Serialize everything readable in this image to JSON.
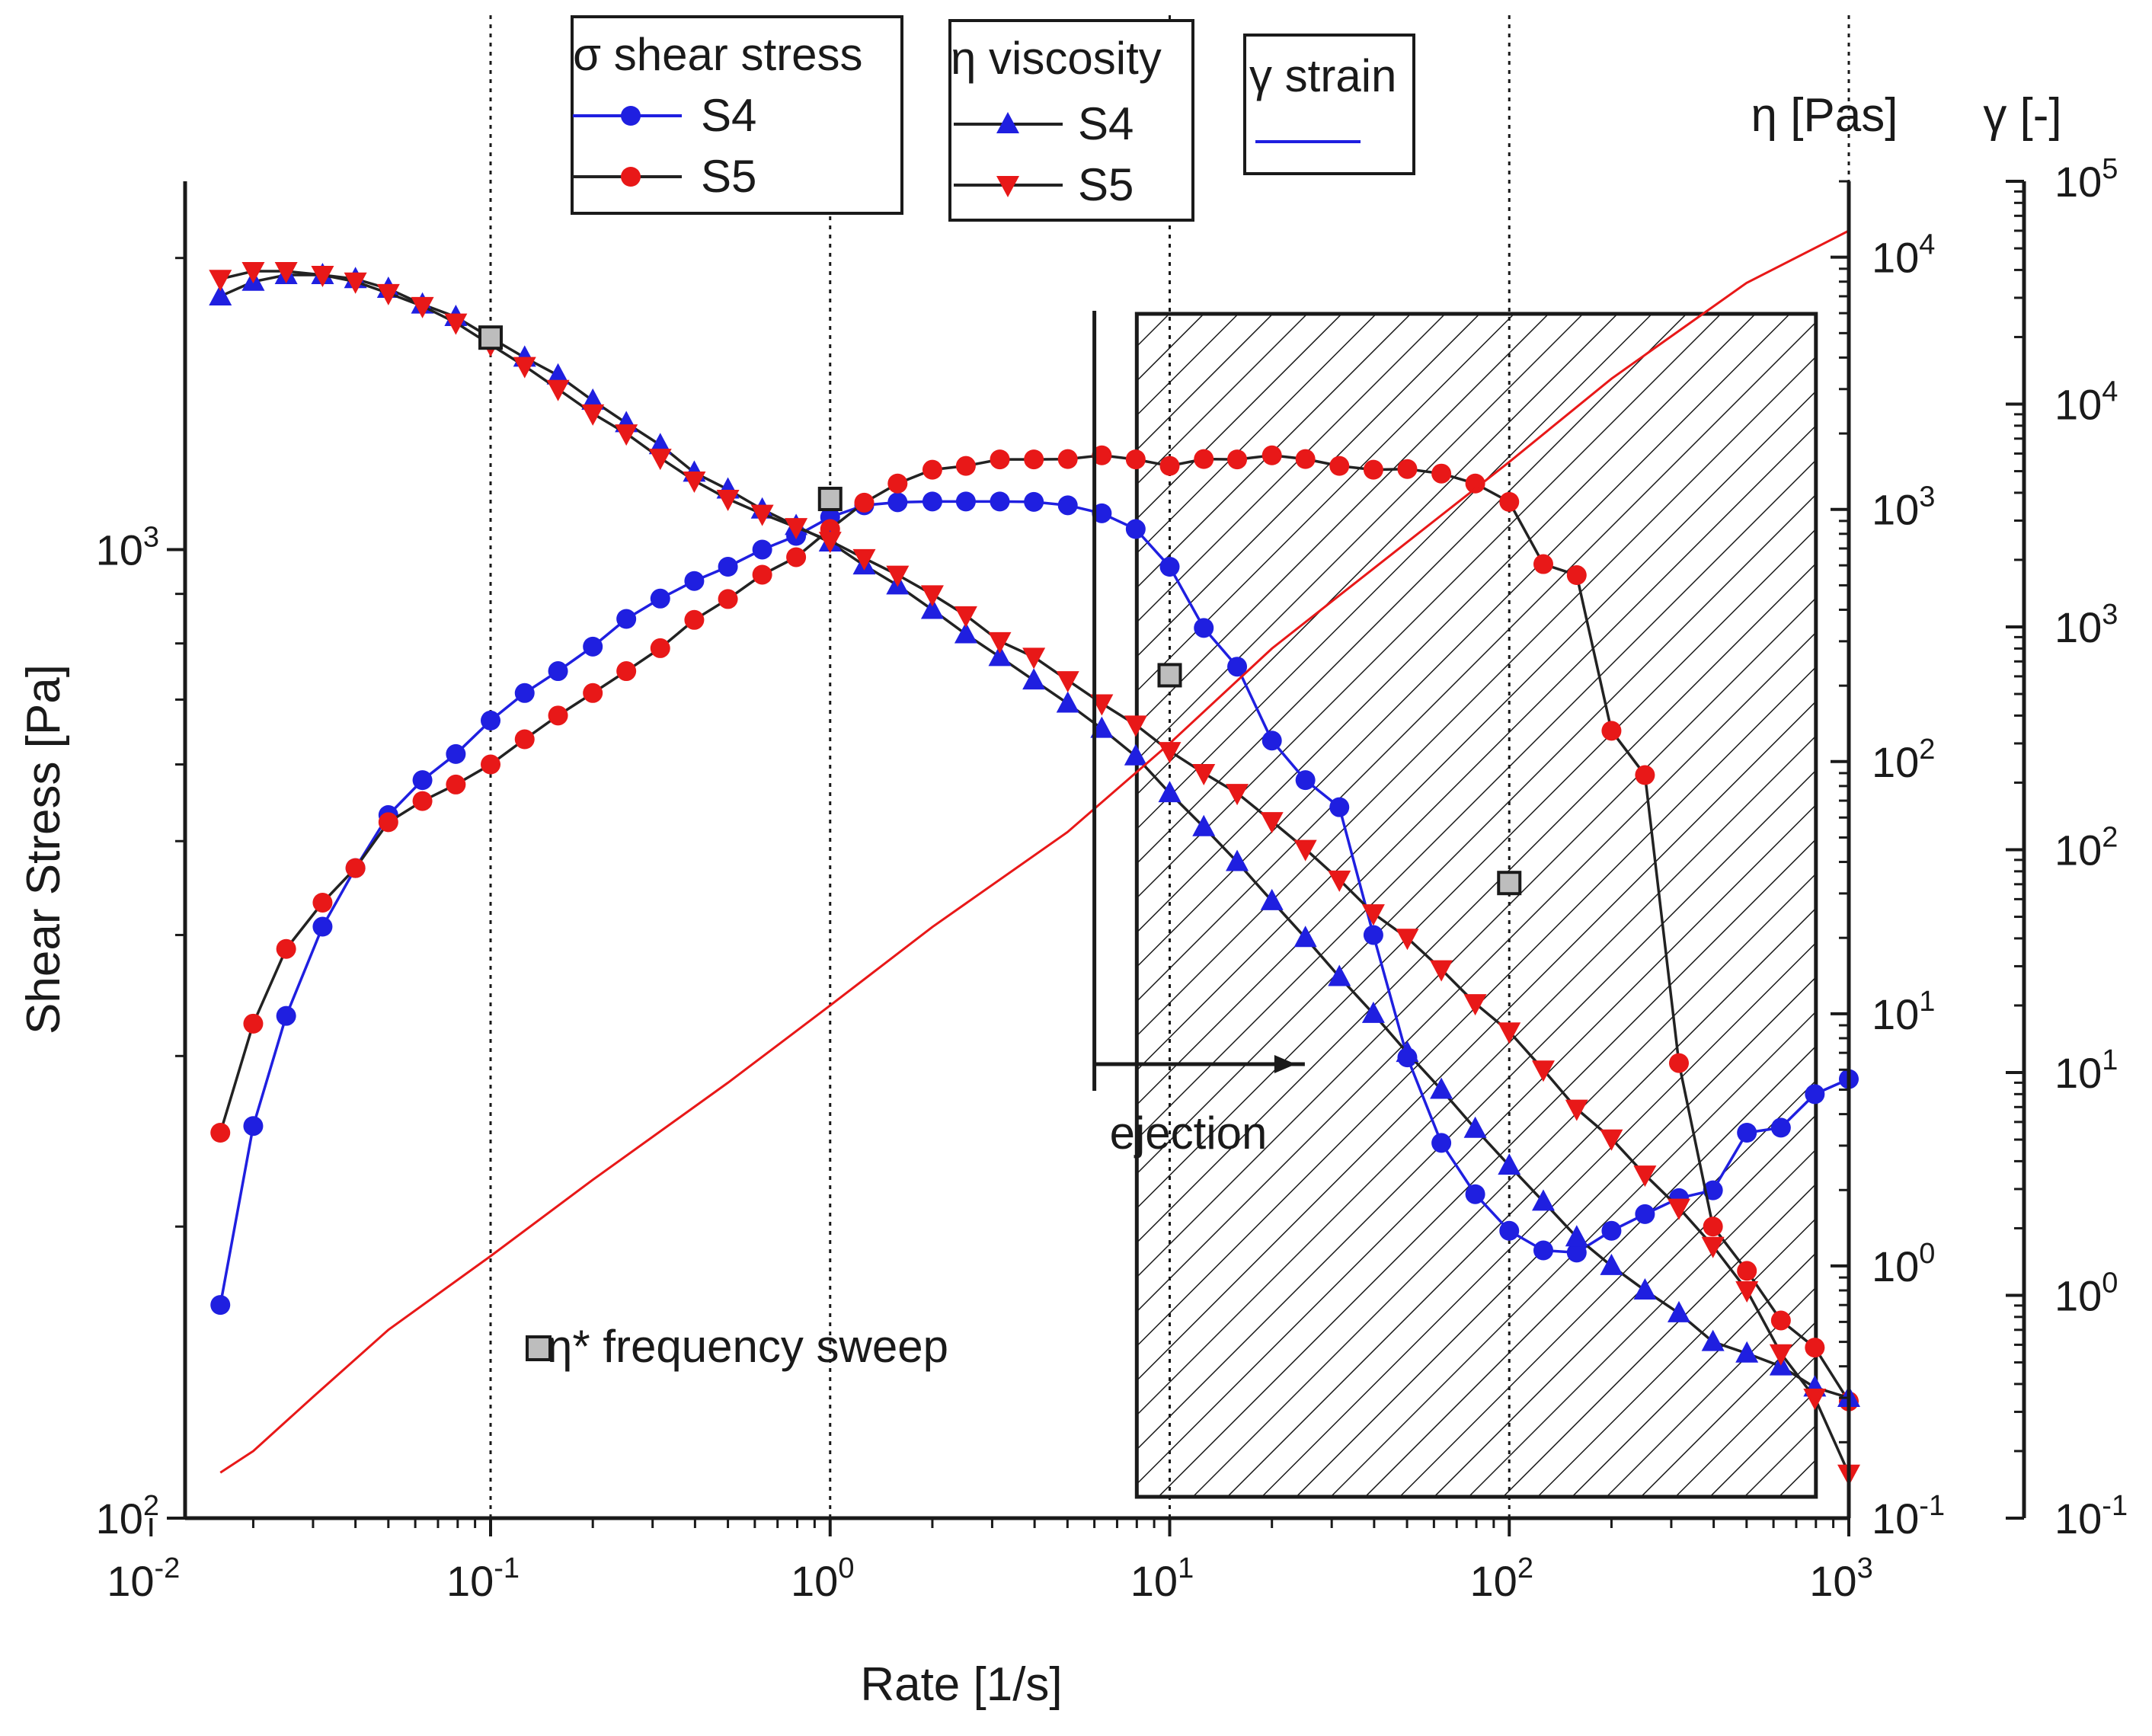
{
  "colors": {
    "s4": "#1f1fe0",
    "s5": "#e81818",
    "strain": "#e81818",
    "strain_legend_line": "#1f1fe0",
    "connector": "#222222",
    "sweep_marker": "#bdbdbd"
  },
  "chart_data": {
    "type": "line",
    "xlabel": "Rate [1/s]",
    "ylabel": "Shear Stress [Pa]",
    "y2label": "η [Pas]",
    "y3label": "γ [-]",
    "xscale": "log",
    "xlim": [
      0.0126,
      1000
    ],
    "ylim": [
      100,
      2400
    ],
    "y2lim": [
      0.1,
      20000
    ],
    "y3lim": [
      0.1,
      100000
    ],
    "grid": "dotted vertical lines at decades",
    "x_ticks": [
      {
        "base": "10",
        "exp": "-2",
        "value": 0.01
      },
      {
        "base": "10",
        "exp": "-1",
        "value": 0.1
      },
      {
        "base": "10",
        "exp": "0",
        "value": 1
      },
      {
        "base": "10",
        "exp": "1",
        "value": 10
      },
      {
        "base": "10",
        "exp": "2",
        "value": 100
      },
      {
        "base": "10",
        "exp": "3",
        "value": 1000
      }
    ],
    "y_ticks": [
      {
        "base": "10",
        "exp": "2",
        "value": 100
      },
      {
        "base": "10",
        "exp": "3",
        "value": 1000
      }
    ],
    "y2_ticks": [
      {
        "base": "10",
        "exp": "-1",
        "value": 0.1
      },
      {
        "base": "10",
        "exp": "0",
        "value": 1
      },
      {
        "base": "10",
        "exp": "1",
        "value": 10
      },
      {
        "base": "10",
        "exp": "2",
        "value": 100
      },
      {
        "base": "10",
        "exp": "3",
        "value": 1000
      },
      {
        "base": "10",
        "exp": "4",
        "value": 10000
      }
    ],
    "y3_ticks": [
      {
        "base": "10",
        "exp": "-1",
        "value": 0.1
      },
      {
        "base": "10",
        "exp": "0",
        "value": 1
      },
      {
        "base": "10",
        "exp": "1",
        "value": 10
      },
      {
        "base": "10",
        "exp": "2",
        "value": 100
      },
      {
        "base": "10",
        "exp": "3",
        "value": 1000
      },
      {
        "base": "10",
        "exp": "4",
        "value": 10000
      },
      {
        "base": "10",
        "exp": "5",
        "value": 100000
      }
    ],
    "legends": [
      {
        "title": "σ shear stress",
        "entries": [
          {
            "label": "S4",
            "marker": "circle",
            "color": "#1f1fe0"
          },
          {
            "label": "S5",
            "marker": "circle",
            "color": "#e81818"
          }
        ]
      },
      {
        "title": "η viscosity",
        "entries": [
          {
            "label": "S4",
            "marker": "triangle-up",
            "color": "#1f1fe0"
          },
          {
            "label": "S5",
            "marker": "triangle-down",
            "color": "#e81818"
          }
        ]
      },
      {
        "title": "γ strain",
        "entries": [
          {
            "label": "",
            "marker": "none",
            "color": "#1f1fe0"
          }
        ]
      }
    ],
    "annotations": {
      "sweep_label": "η* frequency sweep",
      "ejection_label": "ejection",
      "ejection_rate": 6,
      "ejection_arrow_to": 25,
      "hatched_region_x": [
        8,
        800
      ]
    },
    "series": [
      {
        "name": "S4",
        "quantity": "shear stress",
        "axis": "y",
        "marker": "circle",
        "points": [
          [
            0.016,
            166
          ],
          [
            0.02,
            254
          ],
          [
            0.025,
            330
          ],
          [
            0.032,
            408
          ],
          [
            0.04,
            469
          ],
          [
            0.05,
            532
          ],
          [
            0.063,
            578
          ],
          [
            0.079,
            615
          ],
          [
            0.1,
            666
          ],
          [
            0.126,
            711
          ],
          [
            0.158,
            749
          ],
          [
            0.2,
            794
          ],
          [
            0.251,
            848
          ],
          [
            0.316,
            890
          ],
          [
            0.398,
            928
          ],
          [
            0.5,
            960
          ],
          [
            0.631,
            1000
          ],
          [
            0.794,
            1033
          ],
          [
            1,
            1080
          ],
          [
            1.26,
            1111
          ],
          [
            1.58,
            1119
          ],
          [
            2,
            1121
          ],
          [
            2.51,
            1121
          ],
          [
            3.16,
            1121
          ],
          [
            3.98,
            1120
          ],
          [
            5.01,
            1111
          ],
          [
            6.31,
            1090
          ],
          [
            7.94,
            1050
          ],
          [
            10,
            960
          ],
          [
            12.6,
            830
          ],
          [
            15.8,
            757
          ],
          [
            20,
            635
          ],
          [
            25.1,
            578
          ],
          [
            31.6,
            542
          ],
          [
            39.8,
            400
          ],
          [
            50.1,
            299
          ],
          [
            63.1,
            244
          ],
          [
            79.4,
            216
          ],
          [
            100,
            198
          ],
          [
            126,
            189
          ],
          [
            158,
            188
          ],
          [
            200,
            198
          ],
          [
            251,
            206
          ],
          [
            316,
            214
          ],
          [
            398,
            218
          ],
          [
            501,
            250
          ],
          [
            631,
            253
          ],
          [
            794,
            274
          ],
          [
            1000,
            284
          ]
        ]
      },
      {
        "name": "S5",
        "quantity": "shear stress",
        "axis": "y",
        "marker": "circle",
        "points": [
          [
            0.016,
            250
          ],
          [
            0.02,
            324
          ],
          [
            0.025,
            387
          ],
          [
            0.032,
            432
          ],
          [
            0.04,
            469
          ],
          [
            0.05,
            523
          ],
          [
            0.063,
            550
          ],
          [
            0.079,
            572
          ],
          [
            0.1,
            600
          ],
          [
            0.126,
            637
          ],
          [
            0.158,
            674
          ],
          [
            0.2,
            711
          ],
          [
            0.251,
            749
          ],
          [
            0.316,
            791
          ],
          [
            0.398,
            846
          ],
          [
            0.5,
            889
          ],
          [
            0.631,
            942
          ],
          [
            0.794,
            982
          ],
          [
            1,
            1050
          ],
          [
            1.26,
            1118
          ],
          [
            1.58,
            1170
          ],
          [
            2,
            1209
          ],
          [
            2.51,
            1220
          ],
          [
            3.16,
            1239
          ],
          [
            3.98,
            1239
          ],
          [
            5.01,
            1240
          ],
          [
            6.31,
            1251
          ],
          [
            7.94,
            1239
          ],
          [
            10,
            1220
          ],
          [
            12.6,
            1240
          ],
          [
            15.8,
            1239
          ],
          [
            20,
            1251
          ],
          [
            25.1,
            1240
          ],
          [
            31.6,
            1220
          ],
          [
            39.8,
            1209
          ],
          [
            50.1,
            1211
          ],
          [
            63.1,
            1198
          ],
          [
            79.4,
            1170
          ],
          [
            100,
            1120
          ],
          [
            126,
            966
          ],
          [
            158,
            941
          ],
          [
            200,
            650
          ],
          [
            251,
            585
          ],
          [
            316,
            295
          ],
          [
            398,
            200
          ],
          [
            501,
            180
          ],
          [
            631,
            160
          ],
          [
            794,
            150
          ],
          [
            1000,
            132
          ]
        ]
      },
      {
        "name": "S4",
        "quantity": "viscosity",
        "axis": "y2",
        "marker": "triangle-up",
        "points": [
          [
            0.016,
            7000
          ],
          [
            0.02,
            8000
          ],
          [
            0.025,
            8500
          ],
          [
            0.032,
            8500
          ],
          [
            0.04,
            8200
          ],
          [
            0.05,
            7500
          ],
          [
            0.063,
            6500
          ],
          [
            0.079,
            5800
          ],
          [
            0.1,
            4800
          ],
          [
            0.126,
            4000
          ],
          [
            0.158,
            3400
          ],
          [
            0.2,
            2700
          ],
          [
            0.251,
            2200
          ],
          [
            0.316,
            1800
          ],
          [
            0.398,
            1400
          ],
          [
            0.5,
            1200
          ],
          [
            0.631,
            1000
          ],
          [
            0.794,
            860
          ],
          [
            1,
            740
          ],
          [
            1.26,
            600
          ],
          [
            1.58,
            500
          ],
          [
            2,
            400
          ],
          [
            2.51,
            320
          ],
          [
            3.16,
            260
          ],
          [
            3.98,
            210
          ],
          [
            5.01,
            170
          ],
          [
            6.31,
            135
          ],
          [
            7.94,
            105
          ],
          [
            10,
            75
          ],
          [
            12.6,
            55
          ],
          [
            15.8,
            40
          ],
          [
            20,
            28
          ],
          [
            25.1,
            20
          ],
          [
            31.6,
            14
          ],
          [
            39.8,
            10
          ],
          [
            50.1,
            7
          ],
          [
            63.1,
            5
          ],
          [
            79.4,
            3.5
          ],
          [
            100,
            2.5
          ],
          [
            126,
            1.8
          ],
          [
            158,
            1.3
          ],
          [
            200,
            1.0
          ],
          [
            251,
            0.8
          ],
          [
            316,
            0.65
          ],
          [
            398,
            0.5
          ],
          [
            501,
            0.45
          ],
          [
            631,
            0.4
          ],
          [
            794,
            0.33
          ],
          [
            1000,
            0.3
          ]
        ]
      },
      {
        "name": "S5",
        "quantity": "viscosity",
        "axis": "y2",
        "marker": "triangle-down",
        "points": [
          [
            0.016,
            8200
          ],
          [
            0.02,
            8800
          ],
          [
            0.025,
            8800
          ],
          [
            0.032,
            8500
          ],
          [
            0.04,
            8000
          ],
          [
            0.05,
            7200
          ],
          [
            0.063,
            6400
          ],
          [
            0.079,
            5500
          ],
          [
            0.1,
            4500
          ],
          [
            0.126,
            3700
          ],
          [
            0.158,
            3000
          ],
          [
            0.2,
            2400
          ],
          [
            0.251,
            2000
          ],
          [
            0.316,
            1600
          ],
          [
            0.398,
            1300
          ],
          [
            0.5,
            1100
          ],
          [
            0.631,
            960
          ],
          [
            0.794,
            850
          ],
          [
            1,
            750
          ],
          [
            1.26,
            640
          ],
          [
            1.58,
            550
          ],
          [
            2,
            460
          ],
          [
            2.51,
            380
          ],
          [
            3.16,
            300
          ],
          [
            3.98,
            260
          ],
          [
            5.01,
            210
          ],
          [
            6.31,
            170
          ],
          [
            7.94,
            140
          ],
          [
            10,
            110
          ],
          [
            12.6,
            90
          ],
          [
            15.8,
            75
          ],
          [
            20,
            58
          ],
          [
            25.1,
            45
          ],
          [
            31.6,
            34
          ],
          [
            39.8,
            25
          ],
          [
            50.1,
            20
          ],
          [
            63.1,
            15
          ],
          [
            79.4,
            11
          ],
          [
            100,
            8.5
          ],
          [
            126,
            6
          ],
          [
            158,
            4.2
          ],
          [
            200,
            3.2
          ],
          [
            251,
            2.3
          ],
          [
            316,
            1.7
          ],
          [
            398,
            1.2
          ],
          [
            501,
            0.8
          ],
          [
            631,
            0.45
          ],
          [
            794,
            0.3
          ],
          [
            1000,
            0.15
          ]
        ]
      },
      {
        "name": "",
        "quantity": "strain",
        "axis": "y3",
        "marker": "none",
        "points": [
          [
            0.016,
            0.16
          ],
          [
            0.02,
            0.2
          ],
          [
            0.03,
            0.35
          ],
          [
            0.05,
            0.7
          ],
          [
            0.1,
            1.5
          ],
          [
            0.2,
            3.3
          ],
          [
            0.5,
            9
          ],
          [
            1,
            20
          ],
          [
            2,
            45
          ],
          [
            5,
            120
          ],
          [
            10,
            300
          ],
          [
            20,
            800
          ],
          [
            50,
            2400
          ],
          [
            100,
            5500
          ],
          [
            200,
            13000
          ],
          [
            500,
            35000
          ],
          [
            1000,
            60000
          ]
        ]
      },
      {
        "name": "η* frequency sweep",
        "quantity": "complex viscosity",
        "axis": "y2",
        "marker": "square",
        "points": [
          [
            0.1,
            4800
          ],
          [
            1,
            1100
          ],
          [
            10,
            220
          ],
          [
            100,
            33
          ]
        ]
      }
    ]
  }
}
